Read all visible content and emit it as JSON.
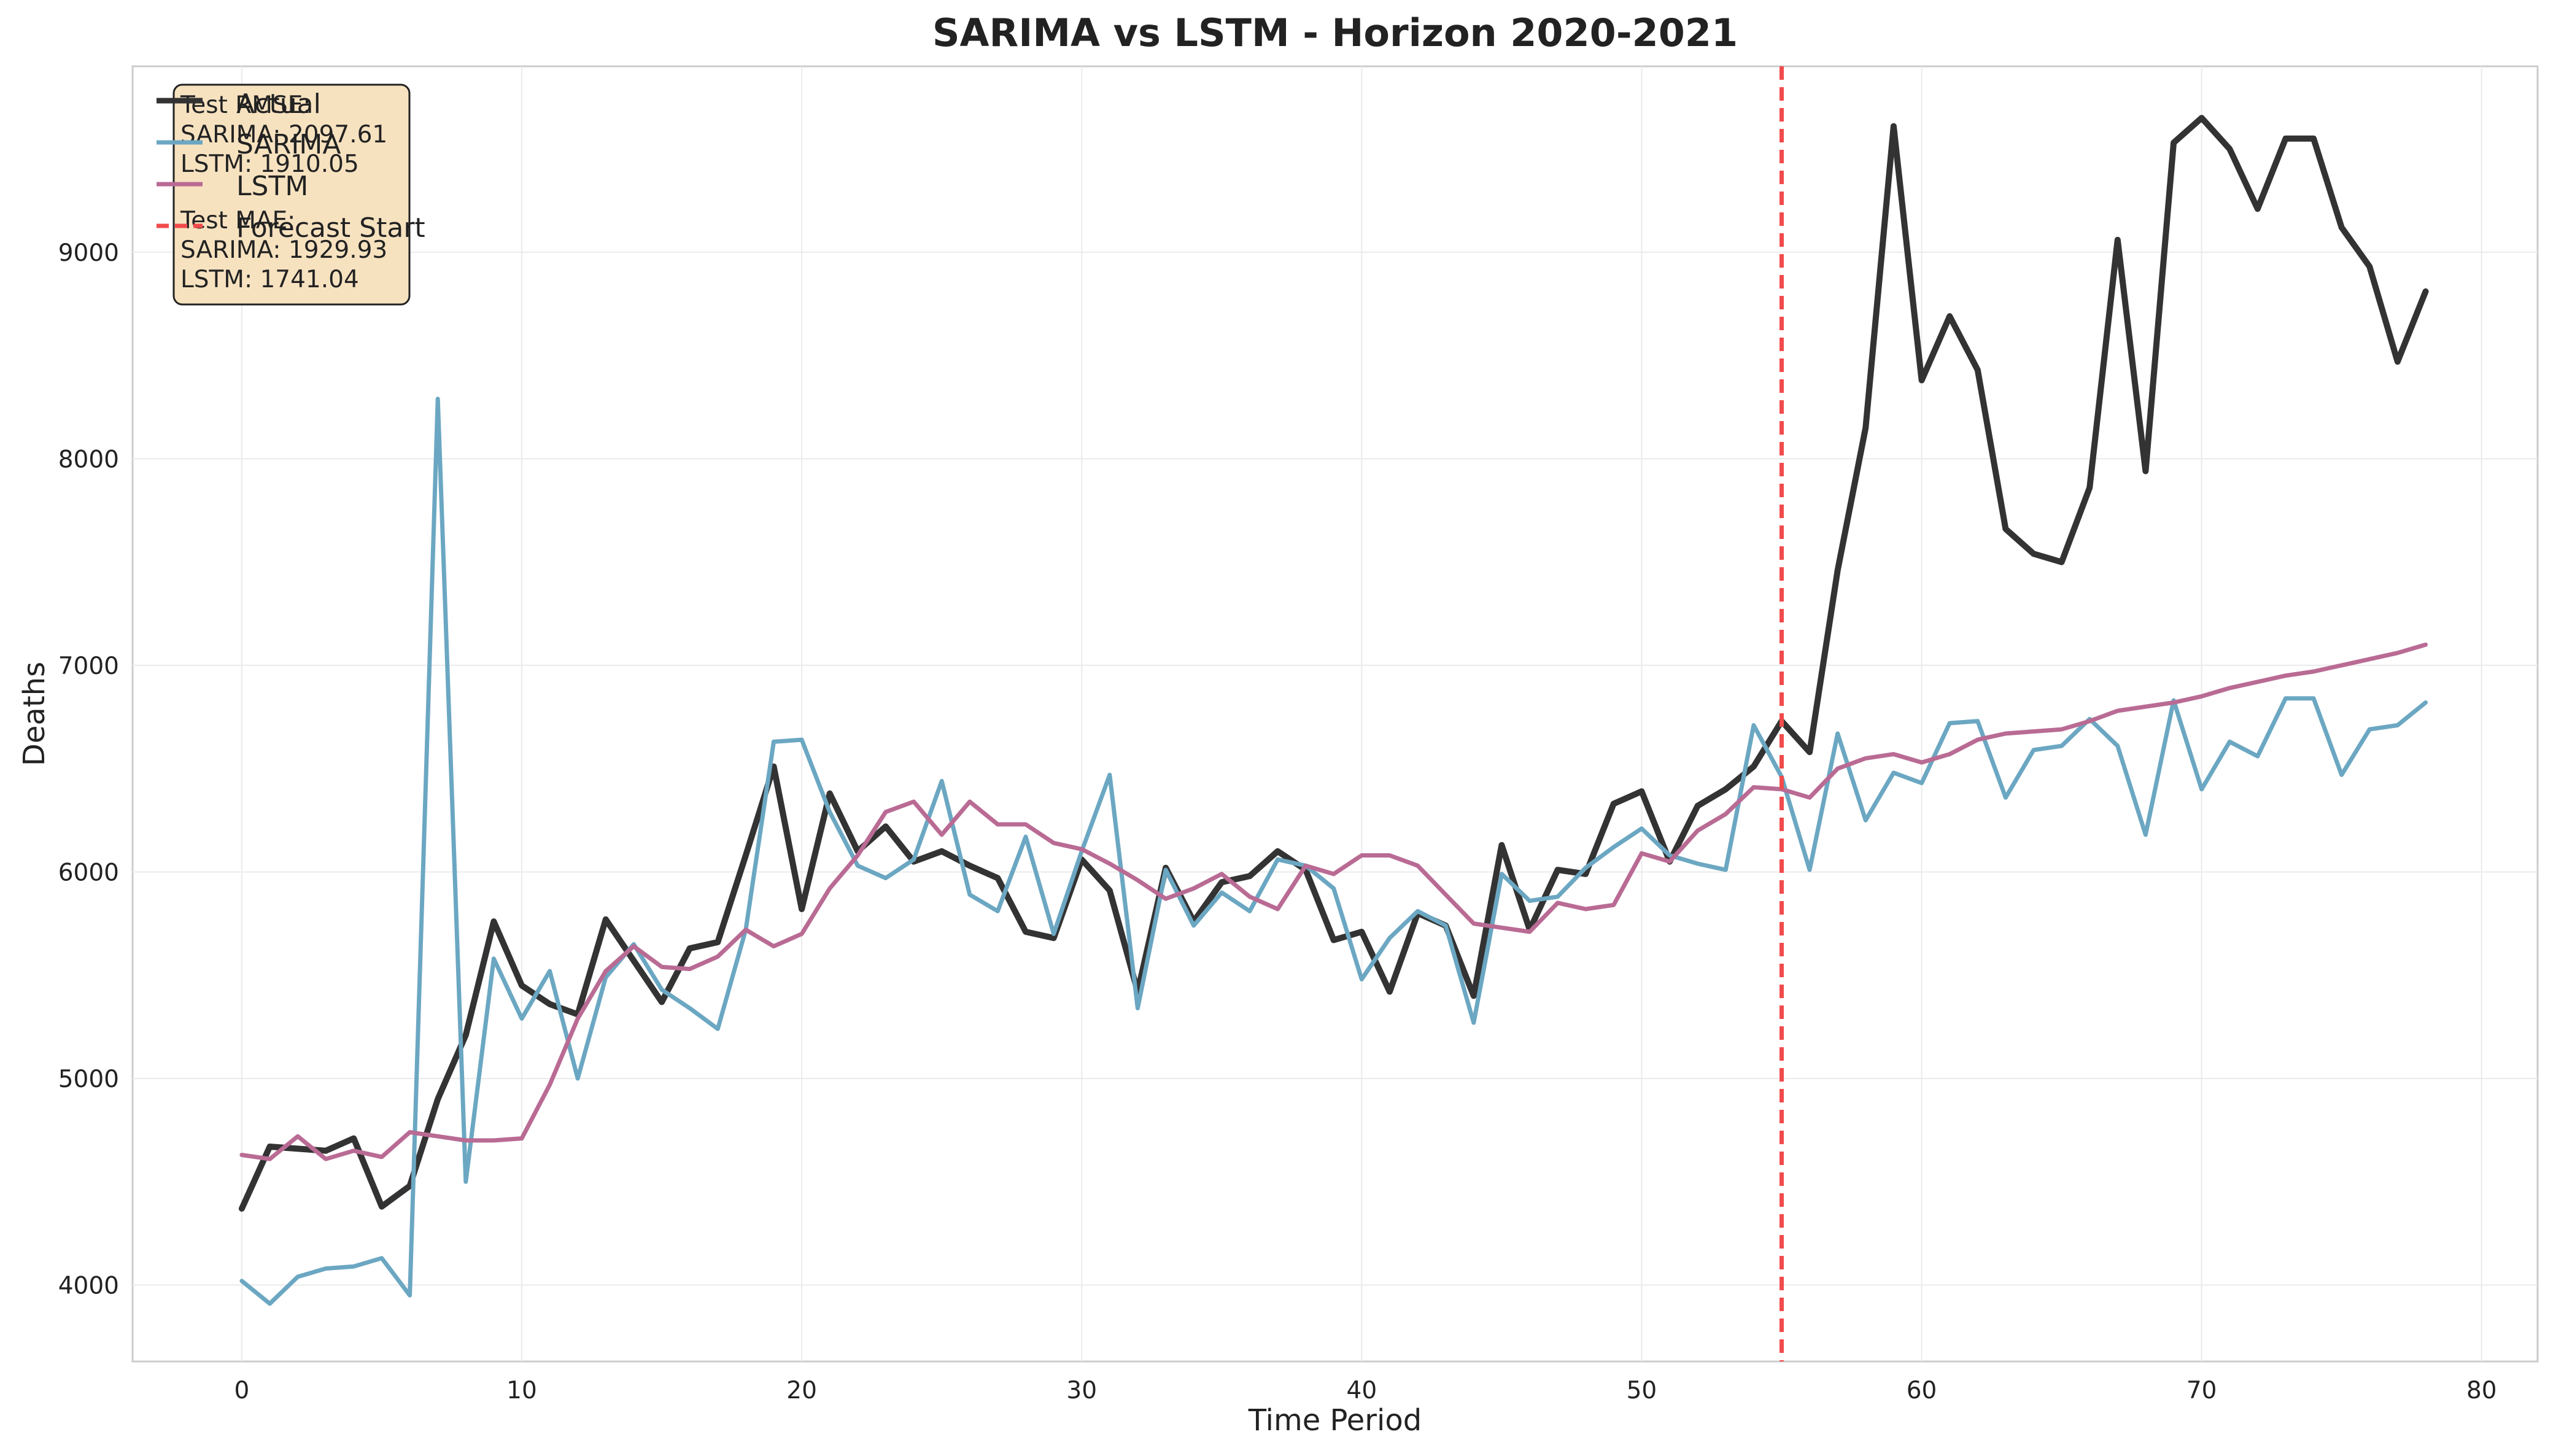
{
  "chart_data": {
    "type": "line",
    "title": "SARIMA vs LSTM - Horizon 2020-2021",
    "xlabel": "Time Period",
    "ylabel": "Deaths",
    "xlim": [
      -3.9,
      82.0
    ],
    "ylim": [
      3630,
      9900
    ],
    "xticks": [
      0,
      10,
      20,
      30,
      40,
      50,
      60,
      70,
      80
    ],
    "yticks": [
      4000,
      5000,
      6000,
      7000,
      8000,
      9000
    ],
    "grid": true,
    "legend": {
      "placement": "top-left",
      "entries": [
        "Actual",
        "SARIMA",
        "LSTM",
        "Forecast Start"
      ]
    },
    "forecast_start": 55,
    "metrics_box": {
      "lines": [
        "Test RMSE:",
        "SARIMA: 2097.61",
        "LSTM: 1910.05",
        "Test MAE:",
        "SARIMA: 1929.93",
        "LSTM: 1741.04"
      ]
    },
    "colors": {
      "actual": "#333333",
      "sarima": "#6ba7c2",
      "lstm": "#b96b94",
      "forecast": "#f24b4b",
      "metrics_bg": "#f7e2c0"
    },
    "series": [
      {
        "name": "Actual",
        "color": "#333333",
        "values": [
          4370,
          4670,
          4660,
          4650,
          4710,
          4380,
          4480,
          4900,
          5210,
          5760,
          5450,
          5360,
          5310,
          5770,
          5570,
          5370,
          5630,
          5660,
          6080,
          6510,
          5820,
          6380,
          6100,
          6220,
          6050,
          6100,
          6030,
          5970,
          5710,
          5680,
          6060,
          5910,
          5420,
          6020,
          5760,
          5950,
          5980,
          6100,
          6010,
          5670,
          5710,
          5420,
          5800,
          5740,
          5400,
          6130,
          5720,
          6010,
          5990,
          6330,
          6390,
          6050,
          6320,
          6400,
          6510,
          6730,
          6580,
          7460,
          8150,
          9610,
          8380,
          8690,
          8430,
          7660,
          7540,
          7500,
          7860,
          9060,
          7940,
          9530,
          9650,
          9500,
          9210,
          9550,
          9550,
          9120,
          8930,
          8470,
          8810
        ]
      },
      {
        "name": "SARIMA",
        "color": "#6ba7c2",
        "values": [
          4020,
          3910,
          4040,
          4080,
          4090,
          4130,
          3950,
          8290,
          4500,
          5580,
          5290,
          5520,
          5000,
          5490,
          5650,
          5430,
          5340,
          5240,
          5720,
          6630,
          6640,
          6290,
          6030,
          5970,
          6060,
          6440,
          5890,
          5810,
          6170,
          5700,
          6100,
          6470,
          5340,
          6010,
          5740,
          5900,
          5810,
          6060,
          6030,
          5920,
          5480,
          5680,
          5810,
          5740,
          5270,
          5990,
          5860,
          5880,
          6020,
          6120,
          6210,
          6080,
          6040,
          6010,
          6710,
          6460,
          6010,
          6670,
          6250,
          6480,
          6430,
          6720,
          6730,
          6360,
          6590,
          6610,
          6740,
          6610,
          6180,
          6830,
          6400,
          6630,
          6560,
          6840,
          6840,
          6470,
          6690,
          6710,
          6820
        ]
      },
      {
        "name": "LSTM",
        "color": "#b96b94",
        "values": [
          4630,
          4610,
          4720,
          4610,
          4650,
          4620,
          4740,
          4720,
          4700,
          4700,
          4710,
          4970,
          5290,
          5520,
          5640,
          5540,
          5530,
          5590,
          5720,
          5640,
          5700,
          5920,
          6080,
          6290,
          6340,
          6180,
          6340,
          6230,
          6230,
          6140,
          6110,
          6040,
          5960,
          5870,
          5920,
          5990,
          5880,
          5820,
          6030,
          5990,
          6080,
          6080,
          6030,
          5890,
          5750,
          5730,
          5710,
          5850,
          5820,
          5840,
          6090,
          6050,
          6200,
          6280,
          6410,
          6400,
          6360,
          6500,
          6550,
          6570,
          6530,
          6570,
          6640,
          6670,
          6680,
          6690,
          6730,
          6780,
          6800,
          6820,
          6850,
          6890,
          6920,
          6950,
          6970,
          7000,
          7030,
          7060,
          7100
        ]
      }
    ]
  }
}
